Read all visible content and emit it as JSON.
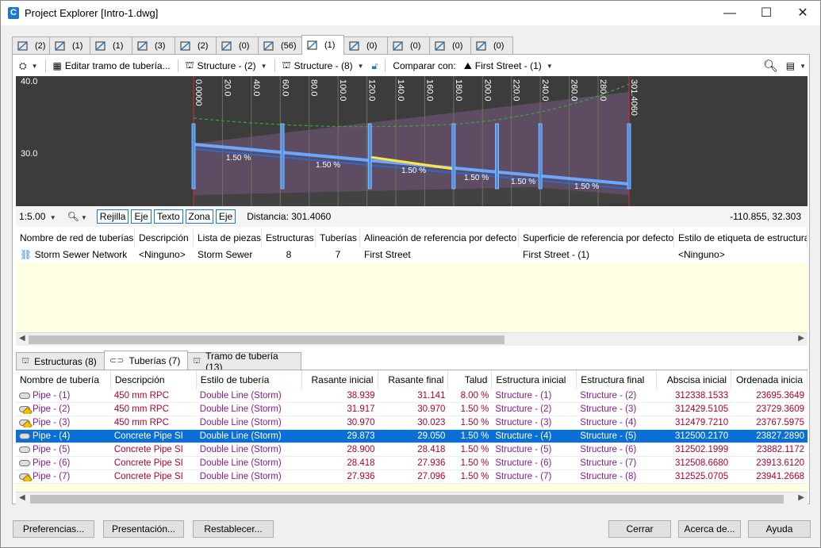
{
  "window": {
    "title": "Project Explorer [Intro-1.dwg]",
    "controls": [
      "—",
      "☐",
      "✕"
    ]
  },
  "tabs": [
    {
      "icon": "alignment-icon",
      "count": "(2)"
    },
    {
      "icon": "structure-icon",
      "count": "(1)"
    },
    {
      "icon": "profile-view-icon",
      "count": "(1)"
    },
    {
      "icon": "section-icon",
      "count": "(3)"
    },
    {
      "icon": "site-icon",
      "count": "(2)"
    },
    {
      "icon": "corridor-icon",
      "count": "(0)"
    },
    {
      "icon": "surface-icon",
      "count": "(56)"
    },
    {
      "icon": "pipe-network-icon",
      "count": "(1)",
      "active": true
    },
    {
      "icon": "pressure-network-icon",
      "count": "(0)"
    },
    {
      "icon": "sample-line-icon",
      "count": "(0)"
    },
    {
      "icon": "point-group-icon",
      "count": "(0)"
    },
    {
      "icon": "catchment-icon",
      "count": "(0)"
    }
  ],
  "toolbar": {
    "edit_run": "Editar tramo de tubería...",
    "structure_from": "Structure - (2)",
    "structure_to": "Structure - (8)",
    "compare_label": "Comparar con:",
    "compare_value": "First Street - (1)"
  },
  "profile": {
    "y_labels": [
      "40.0",
      "30.0"
    ],
    "stations": [
      "0.0000",
      "20.0",
      "40.0",
      "60.0",
      "80.0",
      "100.0",
      "120.0",
      "140.0",
      "160.0",
      "180.0",
      "200.0",
      "220.0",
      "240.0",
      "260.0",
      "280.0",
      "301.4060"
    ],
    "slope_labels": [
      "1.50 %",
      "1.50 %",
      "1.50 %",
      "1.50 %",
      "1.50 %",
      "1.50 %"
    ]
  },
  "profile_bar": {
    "scale": "1:5.00",
    "buttons": [
      "Rejilla",
      "Eje",
      "Texto",
      "Zona",
      "Eje"
    ],
    "distance": "Distancia: 301.4060",
    "coords": "-110.855, 32.303"
  },
  "network_table": {
    "columns": [
      "Nombre de red de tuberías",
      "Descripción",
      "Lista de piezas",
      "Estructuras",
      "Tuberías",
      "Alineación de referencia por defecto",
      "Superficie de referencia por defecto",
      "Estilo de etiqueta de estructura"
    ],
    "row": [
      "Storm Sewer Network",
      "<Ninguno>",
      "Storm Sewer",
      "8",
      "7",
      "First Street",
      "First Street - (1)",
      "<Ninguno>"
    ]
  },
  "lower_tabs": [
    {
      "label": "Estructuras (8)"
    },
    {
      "label": "Tuberías (7)",
      "active": true
    },
    {
      "label": "Tramo de tubería (13)"
    }
  ],
  "pipes_table": {
    "columns": [
      "Nombre de tubería",
      "Descripción",
      "Estilo de tubería",
      "Rasante inicial",
      "Rasante final",
      "Talud",
      "Estructura inicial",
      "Estructura final",
      "Abscisa inicial",
      "Ordenada inicia"
    ],
    "rows": [
      [
        "Pipe - (1)",
        "450 mm RPC",
        "Double Line (Storm)",
        "38.939",
        "31.141",
        "8.00 %",
        "Structure - (1)",
        "Structure - (2)",
        "312338.1533",
        "23695.3649"
      ],
      [
        "Pipe - (2)",
        "450 mm RPC",
        "Double Line (Storm)",
        "31.917",
        "30.970",
        "1.50 %",
        "Structure - (2)",
        "Structure - (3)",
        "312429.5105",
        "23729.3609"
      ],
      [
        "Pipe - (3)",
        "450 mm RPC",
        "Double Line (Storm)",
        "30.970",
        "30.023",
        "1.50 %",
        "Structure - (3)",
        "Structure - (4)",
        "312479.7210",
        "23767.5975"
      ],
      [
        "Pipe - (4)",
        "Concrete Pipe SI",
        "Double Line (Storm)",
        "29.873",
        "29.050",
        "1.50 %",
        "Structure - (4)",
        "Structure - (5)",
        "312500.2170",
        "23827.2890"
      ],
      [
        "Pipe - (5)",
        "Concrete Pipe SI",
        "Double Line (Storm)",
        "28.900",
        "28.418",
        "1.50 %",
        "Structure - (5)",
        "Structure - (6)",
        "312502.1999",
        "23882.1172"
      ],
      [
        "Pipe - (6)",
        "Concrete Pipe SI",
        "Double Line (Storm)",
        "28.418",
        "27.936",
        "1.50 %",
        "Structure - (6)",
        "Structure - (7)",
        "312508.6680",
        "23913.6120"
      ],
      [
        "Pipe - (7)",
        "Concrete Pipe SI",
        "Double Line (Storm)",
        "27.936",
        "27.096",
        "1.50 %",
        "Structure - (7)",
        "Structure - (8)",
        "312525.0705",
        "23941.2668"
      ]
    ]
  },
  "buttons": {
    "preferences": "Preferencias...",
    "presentation": "Presentación...",
    "reset": "Restablecer...",
    "close": "Cerrar",
    "about": "Acerca de...",
    "help": "Ayuda"
  }
}
